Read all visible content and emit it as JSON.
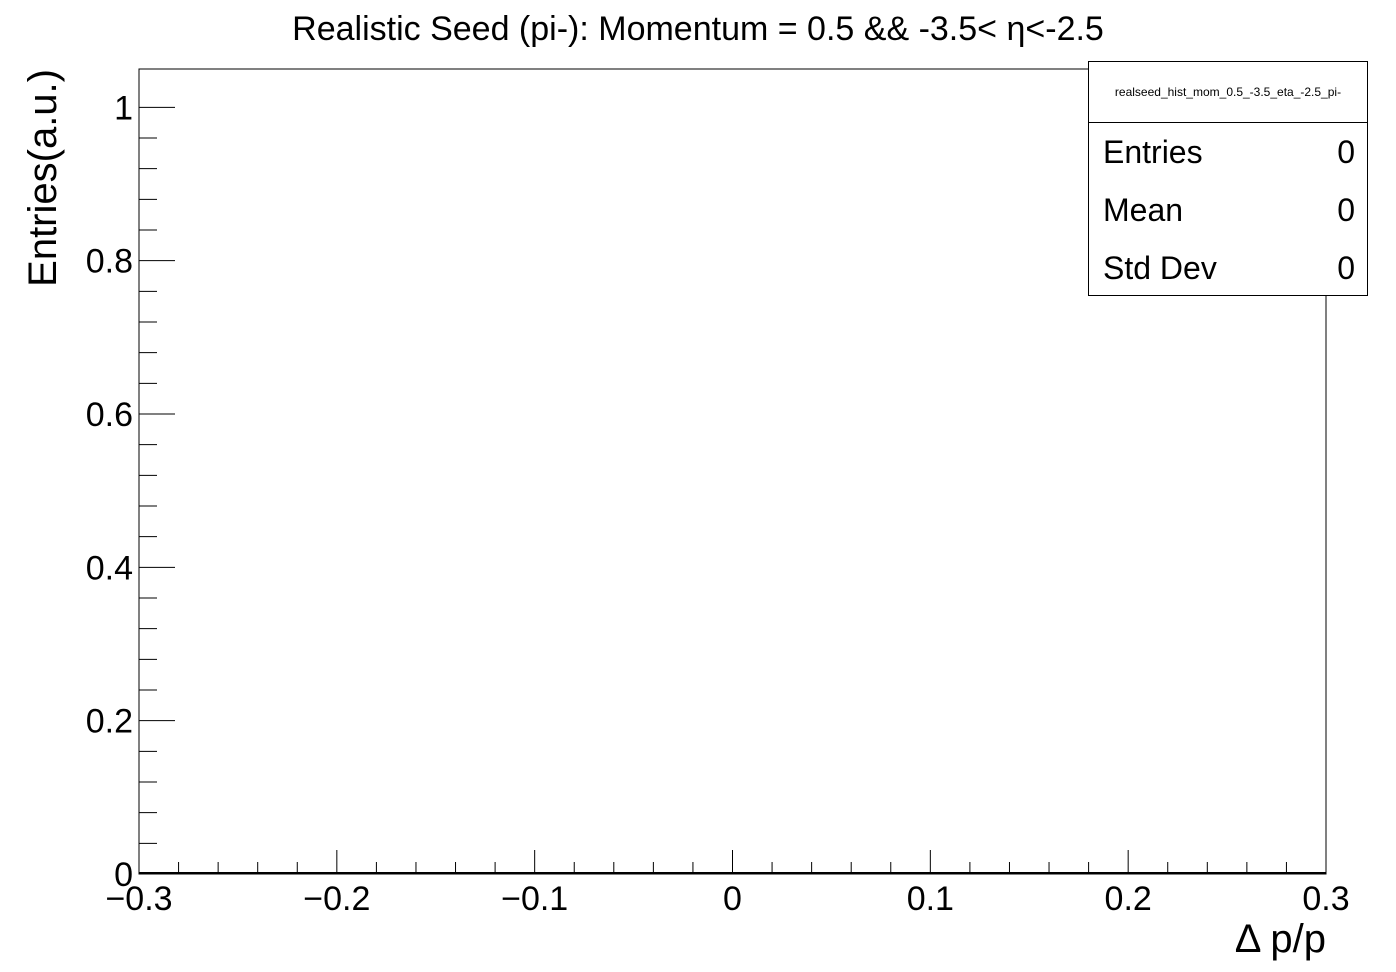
{
  "chart_data": {
    "type": "bar",
    "title_prefix": "Realistic Seed (pi-): Momentum = 0.5 && -3.5<",
    "title_symbol": "η",
    "title_suffix": "<-2.5",
    "xlabel": "Δ p/p",
    "ylabel": "Entries(a.u.)",
    "xlim": [
      -0.3,
      0.3
    ],
    "ylim": [
      0,
      1.05
    ],
    "x_ticks": [
      "−0.3",
      "−0.2",
      "−0.1",
      "0",
      "0.1",
      "0.2",
      "0.3"
    ],
    "y_ticks": [
      "0",
      "0.2",
      "0.4",
      "0.6",
      "0.8",
      "1"
    ],
    "x": [],
    "values": [],
    "grid": false,
    "legend": "none",
    "stats_box": {
      "name": "realseed_hist_mom_0.5_-3.5_eta_-2.5_pi-",
      "rows": [
        {
          "label": "Entries",
          "value": "0"
        },
        {
          "label": "Mean",
          "value": "0"
        },
        {
          "label": "Std Dev",
          "value": "0"
        }
      ]
    }
  }
}
